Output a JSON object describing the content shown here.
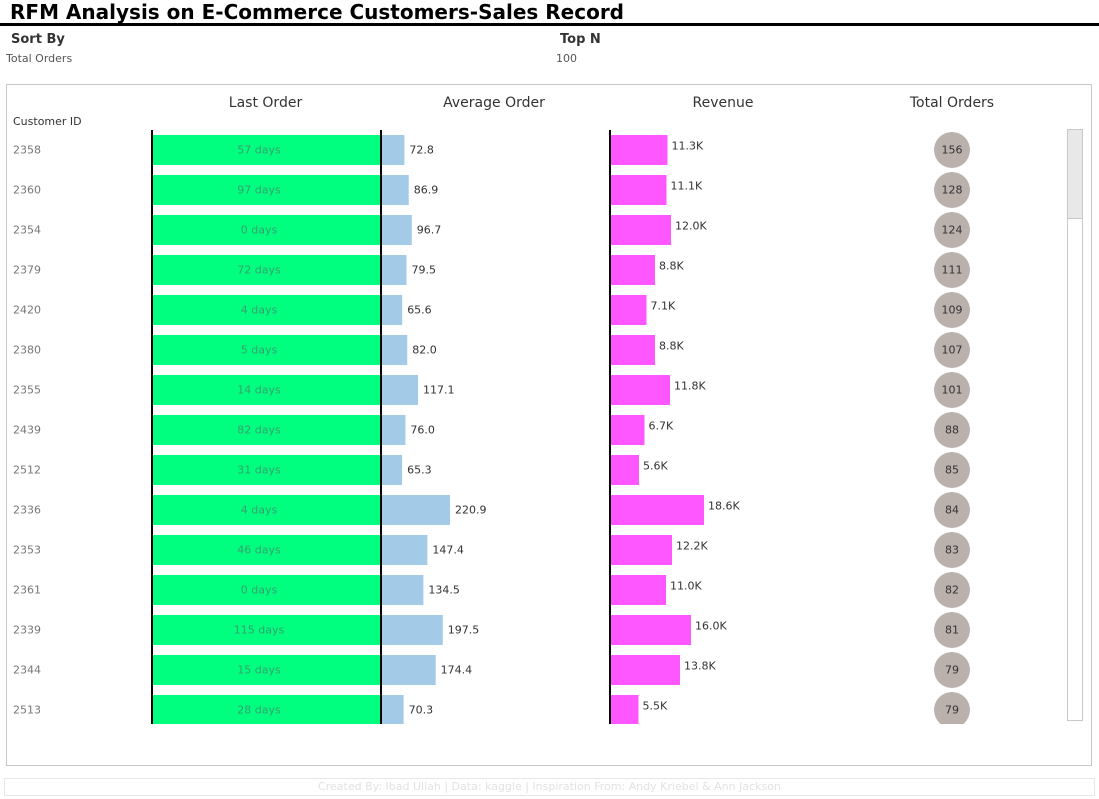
{
  "title": "RFM Analysis on E-Commerce Customers-Sales Record",
  "filters": {
    "sort_by_label": "Sort By",
    "sort_by_value": "Total Orders",
    "top_n_label": "Top N",
    "top_n_value": "100"
  },
  "footer": "Created By: Ibad Ullah  |  Data: kaggle  |  Inspiration From: Andy Kriebel & Ann Jackson",
  "colors": {
    "last_order": "#00ff7f",
    "average_order": "#a3cbe8",
    "revenue": "#ff57ff",
    "total_orders": "#bab0ac"
  },
  "chart_data": {
    "type": "table",
    "row_header": "Customer ID",
    "columns": [
      "Last Order",
      "Average Order",
      "Revenue",
      "Total Orders"
    ],
    "rows": [
      {
        "customer_id": "2358",
        "last_order_days": 57,
        "last_order_label": "57 days",
        "average_order": 72.8,
        "average_order_label": "72.8",
        "revenue": 11300,
        "revenue_label": "11.3K",
        "total_orders": 156
      },
      {
        "customer_id": "2360",
        "last_order_days": 97,
        "last_order_label": "97 days",
        "average_order": 86.9,
        "average_order_label": "86.9",
        "revenue": 11100,
        "revenue_label": "11.1K",
        "total_orders": 128
      },
      {
        "customer_id": "2354",
        "last_order_days": 0,
        "last_order_label": "0 days",
        "average_order": 96.7,
        "average_order_label": "96.7",
        "revenue": 12000,
        "revenue_label": "12.0K",
        "total_orders": 124
      },
      {
        "customer_id": "2379",
        "last_order_days": 72,
        "last_order_label": "72 days",
        "average_order": 79.5,
        "average_order_label": "79.5",
        "revenue": 8800,
        "revenue_label": "8.8K",
        "total_orders": 111
      },
      {
        "customer_id": "2420",
        "last_order_days": 4,
        "last_order_label": "4 days",
        "average_order": 65.6,
        "average_order_label": "65.6",
        "revenue": 7100,
        "revenue_label": "7.1K",
        "total_orders": 109
      },
      {
        "customer_id": "2380",
        "last_order_days": 5,
        "last_order_label": "5 days",
        "average_order": 82.0,
        "average_order_label": "82.0",
        "revenue": 8800,
        "revenue_label": "8.8K",
        "total_orders": 107
      },
      {
        "customer_id": "2355",
        "last_order_days": 14,
        "last_order_label": "14 days",
        "average_order": 117.1,
        "average_order_label": "117.1",
        "revenue": 11800,
        "revenue_label": "11.8K",
        "total_orders": 101
      },
      {
        "customer_id": "2439",
        "last_order_days": 82,
        "last_order_label": "82 days",
        "average_order": 76.0,
        "average_order_label": "76.0",
        "revenue": 6700,
        "revenue_label": "6.7K",
        "total_orders": 88
      },
      {
        "customer_id": "2512",
        "last_order_days": 31,
        "last_order_label": "31 days",
        "average_order": 65.3,
        "average_order_label": "65.3",
        "revenue": 5600,
        "revenue_label": "5.6K",
        "total_orders": 85
      },
      {
        "customer_id": "2336",
        "last_order_days": 4,
        "last_order_label": "4 days",
        "average_order": 220.9,
        "average_order_label": "220.9",
        "revenue": 18600,
        "revenue_label": "18.6K",
        "total_orders": 84
      },
      {
        "customer_id": "2353",
        "last_order_days": 46,
        "last_order_label": "46 days",
        "average_order": 147.4,
        "average_order_label": "147.4",
        "revenue": 12200,
        "revenue_label": "12.2K",
        "total_orders": 83
      },
      {
        "customer_id": "2361",
        "last_order_days": 0,
        "last_order_label": "0 days",
        "average_order": 134.5,
        "average_order_label": "134.5",
        "revenue": 11000,
        "revenue_label": "11.0K",
        "total_orders": 82
      },
      {
        "customer_id": "2339",
        "last_order_days": 115,
        "last_order_label": "115 days",
        "average_order": 197.5,
        "average_order_label": "197.5",
        "revenue": 16000,
        "revenue_label": "16.0K",
        "total_orders": 81
      },
      {
        "customer_id": "2344",
        "last_order_days": 15,
        "last_order_label": "15 days",
        "average_order": 174.4,
        "average_order_label": "174.4",
        "revenue": 13800,
        "revenue_label": "13.8K",
        "total_orders": 79
      },
      {
        "customer_id": "2513",
        "last_order_days": 28,
        "last_order_label": "28 days",
        "average_order": 70.3,
        "average_order_label": "70.3",
        "revenue": 5500,
        "revenue_label": "5.5K",
        "total_orders": 79
      }
    ]
  }
}
